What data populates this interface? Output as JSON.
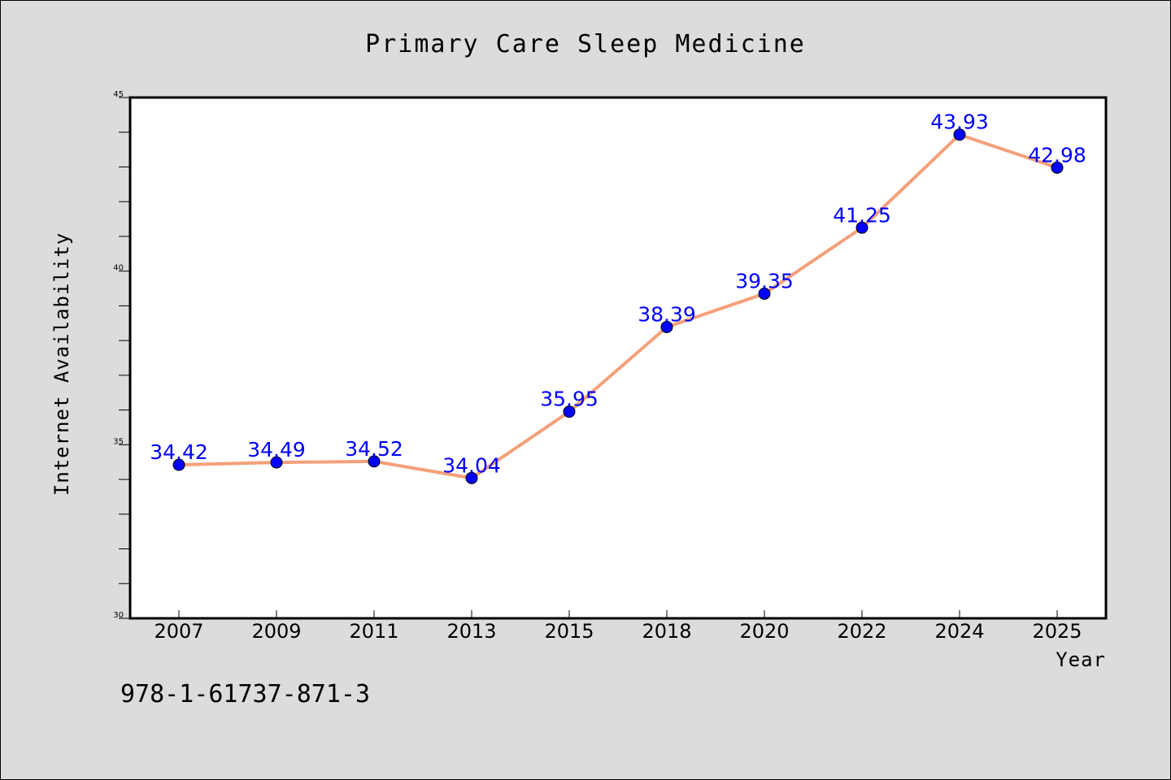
{
  "page": {
    "isbn_text": "978-1-61737-871-3"
  },
  "chart_data": {
    "type": "line",
    "title": "Primary Care Sleep Medicine",
    "xlabel": "Year",
    "ylabel": "Internet Availability",
    "categories": [
      "2007",
      "2009",
      "2011",
      "2013",
      "2015",
      "2018",
      "2020",
      "2022",
      "2024",
      "2025"
    ],
    "series": [
      {
        "values": [
          34.42,
          34.49,
          34.52,
          34.04,
          35.95,
          38.39,
          39.35,
          41.25,
          43.93,
          42.98
        ],
        "data_labels": [
          "34.42",
          "34.49",
          "34.52",
          "34.04",
          "35.95",
          "38.39",
          "39.35",
          "41.25",
          "43.93",
          "42.98"
        ],
        "line_color": "#f4a07a",
        "marker_color": "#0000ff"
      }
    ],
    "ylim": [
      30,
      45
    ],
    "y_major_ticks": [
      "30",
      "35",
      "40",
      "45"
    ],
    "y_minor_step": 1,
    "grid": false,
    "legend": "none",
    "colors": {
      "background": "#dcdcdc",
      "plot_area": "#ffffff",
      "line": "#f4a07a",
      "marker": "#0000ff",
      "data_label": "#0000ff"
    }
  }
}
